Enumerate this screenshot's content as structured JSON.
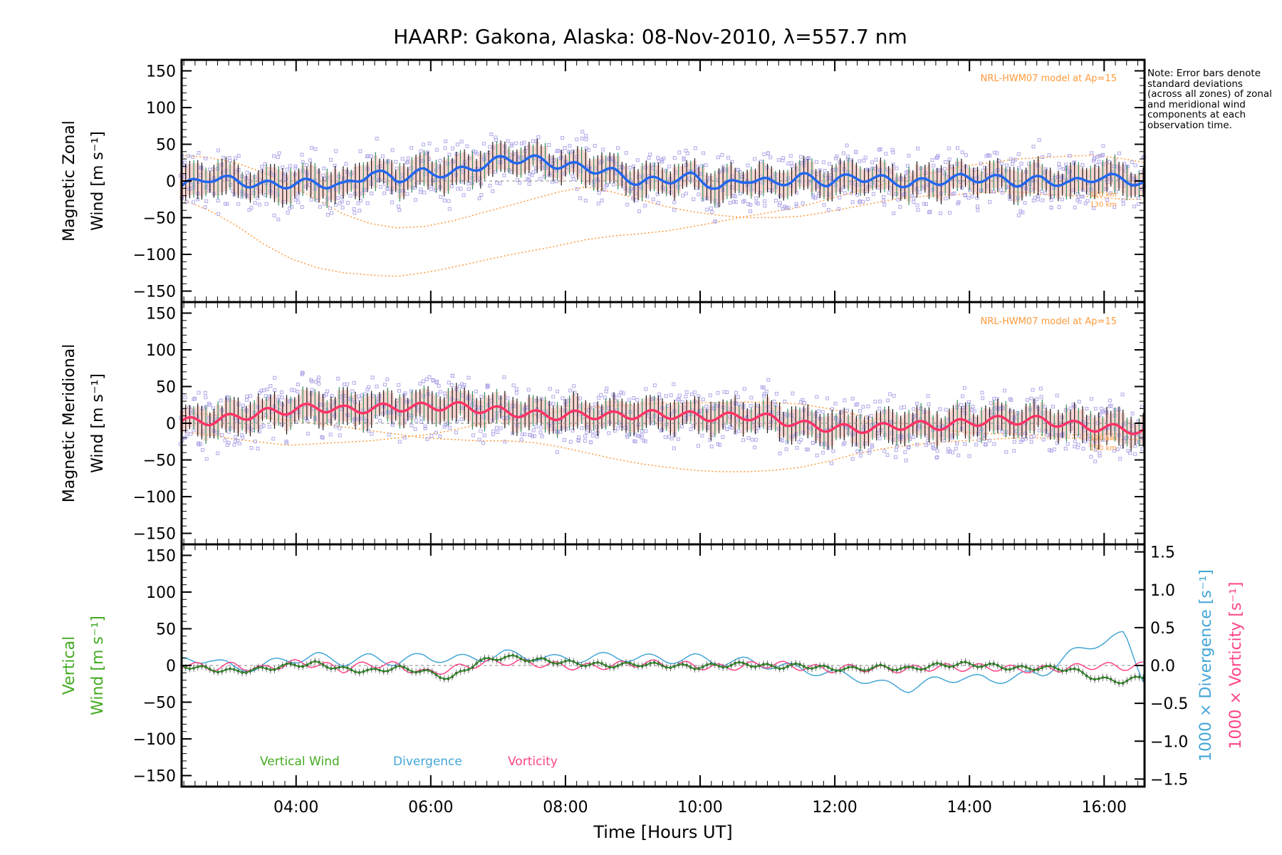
{
  "title": "HAARP: Gakona,  Alaska: 08-Nov-2010, λ=557.7 nm",
  "note": "Note: Error bars denote standard deviations (across all zones) of zonal and meridional wind components at each observation time.",
  "x_axis": {
    "label": "Time [Hours UT]",
    "ticks": [
      "04:00",
      "06:00",
      "08:00",
      "10:00",
      "12:00",
      "14:00",
      "16:00"
    ]
  },
  "colors": {
    "zonal": "#2266ee",
    "meridional": "#ff3366",
    "vertical": "#44aa22",
    "divergence": "#44a6d6",
    "vorticity": "#ff4488",
    "model": "#ff9a3c",
    "zone_points": "#b0a8e8",
    "error_shade": "#f6b8b0"
  },
  "panels": {
    "zonal": {
      "ylabel_line1": "Magnetic Zonal",
      "ylabel_line2": "Wind [m s⁻¹]",
      "model_label": "NRL-HWM07 model at Ap=15",
      "alt_labels": [
        "120 km",
        "130 km"
      ]
    },
    "meridional": {
      "ylabel_line1": "Magnetic Meridional",
      "ylabel_line2": "Wind [m s⁻¹]",
      "model_label": "NRL-HWM07 model at Ap=15",
      "alt_labels": [
        "120 km",
        "130 km"
      ]
    },
    "vertical": {
      "ylabel_line1": "Vertical",
      "ylabel_line2": "Wind [m s⁻¹]",
      "right_label_div": "1000 × Divergence [s⁻¹]",
      "right_label_vor": "1000 × Vorticity [s⁻¹]",
      "legend": [
        "Vertical Wind",
        "Divergence",
        "Vorticity"
      ]
    }
  },
  "chart_data": [
    {
      "type": "line",
      "title": "HAARP: Gakona,  Alaska: 08-Nov-2010, λ=557.7 nm",
      "xlabel": "Time [Hours UT]",
      "ylabel": "Magnetic Zonal Wind [m s⁻¹]",
      "xlim": [
        2.3,
        16.6
      ],
      "ylim": [
        -165,
        165
      ],
      "yticks": [
        150,
        100,
        50,
        0,
        -50,
        -100,
        -150
      ],
      "x": [
        2.3,
        2.7,
        3.1,
        3.5,
        3.9,
        4.3,
        4.7,
        5.1,
        5.5,
        5.9,
        6.3,
        6.7,
        7.1,
        7.5,
        7.9,
        8.3,
        8.7,
        9.1,
        9.5,
        9.9,
        10.3,
        10.7,
        11.1,
        11.5,
        11.9,
        12.3,
        12.7,
        13.1,
        13.5,
        13.9,
        14.3,
        14.7,
        15.1,
        15.5,
        15.9,
        16.3,
        16.6
      ],
      "series": [
        {
          "name": "Magnetic Zonal Wind",
          "values": [
            -8,
            5,
            0,
            -6,
            -4,
            -2,
            -8,
            12,
            3,
            12,
            10,
            20,
            30,
            30,
            22,
            18,
            12,
            -2,
            2,
            6,
            -10,
            4,
            -4,
            6,
            -2,
            6,
            2,
            -4,
            0,
            4,
            4,
            -2,
            2,
            -4,
            6,
            2,
            -3
          ]
        },
        {
          "name": "NRL-HWM07 120 km",
          "values": [
            35,
            32,
            25,
            12,
            -5,
            -25,
            -45,
            -58,
            -64,
            -62,
            -55,
            -45,
            -35,
            -25,
            -15,
            -8,
            -15,
            -25,
            -35,
            -42,
            -47,
            -50,
            -50,
            -48,
            -42,
            -35,
            -28,
            -22,
            -20,
            -18,
            -15,
            -15,
            -18,
            -20,
            -22,
            -25,
            -25
          ]
        },
        {
          "name": "NRL-HWM07 130 km",
          "values": [
            -25,
            -40,
            -60,
            -85,
            -105,
            -118,
            -125,
            -128,
            -130,
            -125,
            -118,
            -110,
            -102,
            -95,
            -88,
            -80,
            -75,
            -72,
            -68,
            -62,
            -55,
            -48,
            -42,
            -35,
            -25,
            -15,
            -5,
            5,
            12,
            20,
            25,
            30,
            32,
            34,
            35,
            30,
            25
          ]
        }
      ]
    },
    {
      "type": "line",
      "xlabel": "Time [Hours UT]",
      "ylabel": "Magnetic Meridional Wind [m s⁻¹]",
      "xlim": [
        2.3,
        16.6
      ],
      "ylim": [
        -165,
        165
      ],
      "yticks": [
        150,
        100,
        50,
        0,
        -50,
        -100,
        -150
      ],
      "x": [
        2.3,
        2.7,
        3.1,
        3.5,
        3.9,
        4.3,
        4.7,
        5.1,
        5.5,
        5.9,
        6.3,
        6.7,
        7.1,
        7.5,
        7.9,
        8.3,
        8.7,
        9.1,
        9.5,
        9.9,
        10.3,
        10.7,
        11.1,
        11.5,
        11.9,
        12.3,
        12.7,
        13.1,
        13.5,
        13.9,
        14.3,
        14.7,
        15.1,
        15.5,
        15.9,
        16.3,
        16.6
      ],
      "series": [
        {
          "name": "Magnetic Meridional Wind",
          "values": [
            2,
            3,
            8,
            14,
            18,
            22,
            18,
            20,
            22,
            22,
            24,
            20,
            16,
            12,
            10,
            12,
            10,
            12,
            12,
            10,
            8,
            10,
            6,
            -2,
            -6,
            -8,
            -6,
            -2,
            -4,
            0,
            4,
            4,
            4,
            -2,
            -6,
            -8,
            -10
          ]
        },
        {
          "name": "NRL-HWM07 120 km",
          "values": [
            -12,
            -16,
            -22,
            -26,
            -30,
            -28,
            -26,
            -24,
            -20,
            -16,
            -10,
            -2,
            4,
            10,
            16,
            20,
            24,
            26,
            27,
            28,
            28,
            29,
            28,
            26,
            20,
            12,
            5,
            -2,
            -8,
            -12,
            -14,
            -15,
            -16,
            -16,
            -15,
            -14,
            -14
          ]
        },
        {
          "name": "NRL-HWM07 130 km",
          "values": [
            14,
            12,
            10,
            8,
            4,
            0,
            -5,
            -10,
            -15,
            -20,
            -22,
            -24,
            -24,
            -26,
            -32,
            -40,
            -48,
            -55,
            -60,
            -64,
            -66,
            -66,
            -64,
            -60,
            -52,
            -42,
            -35,
            -30,
            -26,
            -24,
            -22,
            -20,
            -20,
            -20,
            -21,
            -22,
            -22
          ]
        }
      ]
    },
    {
      "type": "line",
      "xlabel": "Time [Hours UT]",
      "ylabel": "Vertical Wind [m s⁻¹]",
      "ylabel_right": [
        "1000 × Divergence [s⁻¹]",
        "1000 × Vorticity [s⁻¹]"
      ],
      "xlim": [
        2.3,
        16.6
      ],
      "ylim": [
        -165,
        165
      ],
      "ylim_right": [
        -1.6,
        1.6
      ],
      "yticks": [
        150,
        100,
        50,
        0,
        -50,
        -100,
        -150
      ],
      "yticks_right": [
        1.5,
        1.0,
        0.5,
        0.0,
        -0.5,
        -1.0,
        -1.5
      ],
      "x": [
        2.3,
        2.7,
        3.1,
        3.5,
        3.9,
        4.3,
        4.7,
        5.1,
        5.5,
        5.9,
        6.3,
        6.7,
        7.1,
        7.5,
        7.9,
        8.3,
        8.7,
        9.1,
        9.5,
        9.9,
        10.3,
        10.7,
        11.1,
        11.5,
        11.9,
        12.3,
        12.7,
        13.1,
        13.5,
        13.9,
        14.3,
        14.7,
        15.1,
        15.5,
        15.9,
        16.3,
        16.6
      ],
      "series": [
        {
          "name": "Vertical Wind",
          "values": [
            0,
            -5,
            -8,
            -5,
            0,
            3,
            -5,
            -8,
            -3,
            -8,
            -18,
            5,
            12,
            8,
            5,
            2,
            0,
            2,
            0,
            -2,
            0,
            2,
            -2,
            0,
            -4,
            -5,
            -2,
            -5,
            0,
            2,
            0,
            -4,
            -3,
            -5,
            -18,
            -22,
            -15
          ]
        },
        {
          "name": "Divergence",
          "values": [
            0.05,
            0.1,
            -0.05,
            0.0,
            0.08,
            0.12,
            0.05,
            0.1,
            0.05,
            0.12,
            0.08,
            0.1,
            0.15,
            0.12,
            0.08,
            0.1,
            0.12,
            0.1,
            0.08,
            0.1,
            0.05,
            0.05,
            0.0,
            -0.05,
            -0.1,
            -0.15,
            -0.25,
            -0.3,
            -0.2,
            -0.15,
            -0.2,
            -0.15,
            -0.1,
            0.15,
            0.3,
            0.4,
            -0.2
          ]
        },
        {
          "name": "Vorticity",
          "values": [
            0.02,
            -0.03,
            0.0,
            -0.05,
            0.03,
            0.02,
            -0.05,
            0.02,
            0.0,
            -0.1,
            -0.05,
            0.02,
            0.05,
            0.03,
            0.0,
            -0.02,
            0.0,
            0.03,
            0.02,
            0.0,
            -0.03,
            0.0,
            0.02,
            -0.02,
            -0.05,
            -0.03,
            -0.05,
            -0.05,
            -0.02,
            -0.03,
            -0.02,
            -0.05,
            -0.05,
            -0.03,
            0.0,
            -0.02,
            0.0
          ]
        }
      ]
    }
  ]
}
